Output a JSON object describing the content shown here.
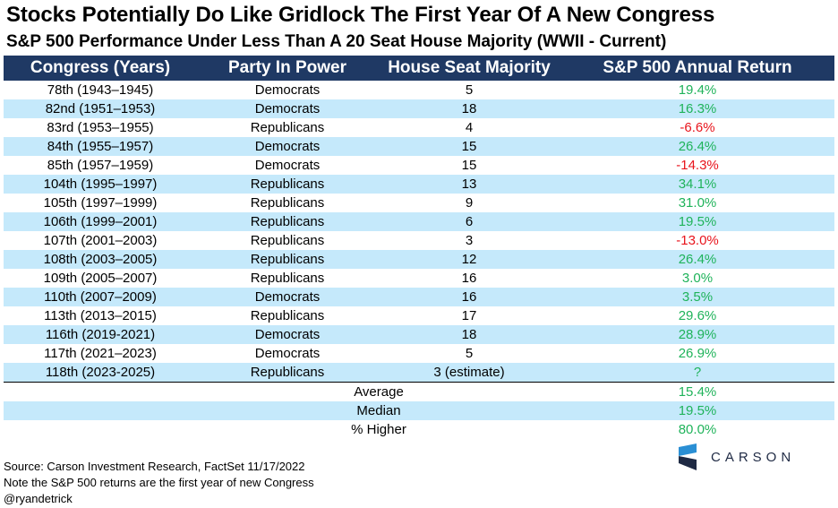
{
  "title": "Stocks Potentially Do Like Gridlock The First Year Of A New Congress",
  "subtitle": "S&P 500 Performance Under Less Than A 20 Seat House Majority (WWII - Current)",
  "headers": [
    "Congress (Years)",
    "Party In Power",
    "House Seat Majority",
    "S&P 500 Annual Return"
  ],
  "rows": [
    {
      "congress": "78th (1943–1945)",
      "party": "Democrats",
      "majority": "5",
      "ret": "19.4%"
    },
    {
      "congress": "82nd (1951–1953)",
      "party": "Democrats",
      "majority": "18",
      "ret": "16.3%"
    },
    {
      "congress": "83rd (1953–1955)",
      "party": "Republicans",
      "majority": "4",
      "ret": "-6.6%"
    },
    {
      "congress": "84th (1955–1957)",
      "party": "Democrats",
      "majority": "15",
      "ret": "26.4%"
    },
    {
      "congress": "85th (1957–1959)",
      "party": "Democrats",
      "majority": "15",
      "ret": "-14.3%"
    },
    {
      "congress": "104th (1995–1997)",
      "party": "Republicans",
      "majority": "13",
      "ret": "34.1%"
    },
    {
      "congress": "105th (1997–1999)",
      "party": "Republicans",
      "majority": "9",
      "ret": "31.0%"
    },
    {
      "congress": "106th (1999–2001)",
      "party": "Republicans",
      "majority": "6",
      "ret": "19.5%"
    },
    {
      "congress": "107th (2001–2003)",
      "party": "Republicans",
      "majority": "3",
      "ret": "-13.0%"
    },
    {
      "congress": "108th (2003–2005)",
      "party": "Republicans",
      "majority": "12",
      "ret": "26.4%"
    },
    {
      "congress": "109th (2005–2007)",
      "party": "Republicans",
      "majority": "16",
      "ret": "3.0%"
    },
    {
      "congress": "110th (2007–2009)",
      "party": "Democrats",
      "majority": "16",
      "ret": "3.5%"
    },
    {
      "congress": "113th (2013–2015)",
      "party": "Republicans",
      "majority": "17",
      "ret": "29.6%"
    },
    {
      "congress": "116th (2019-2021)",
      "party": "Democrats",
      "majority": "18",
      "ret": "28.9%"
    },
    {
      "congress": "117th (2021–2023)",
      "party": "Democrats",
      "majority": "5",
      "ret": "26.9%"
    },
    {
      "congress": "118th (2023-2025)",
      "party": "Republicans",
      "majority": "3 (estimate)",
      "ret": "?"
    }
  ],
  "summary": [
    {
      "label": "Average",
      "value": "15.4%"
    },
    {
      "label": "Median",
      "value": "19.5%"
    },
    {
      "label": "% Higher",
      "value": "80.0%"
    }
  ],
  "colors": {
    "positive": "#1fb35a",
    "negative": "#e8141c",
    "header_bg": "#1f3964",
    "band": "#c5e9fb"
  },
  "notes": [
    "Source: Carson Investment Research, FactSet  11/17/2022",
    "Note the S&P 500 returns are the first year of new Congress",
    "@ryandetrick"
  ],
  "logo": {
    "text": "CARSON",
    "icon": "carson-logo-icon"
  },
  "chart_data": {
    "type": "table",
    "title": "Stocks Potentially Do Like Gridlock The First Year Of A New Congress",
    "subtitle": "S&P 500 Performance Under Less Than A 20 Seat House Majority (WWII - Current)",
    "columns": [
      "Congress (Years)",
      "Party In Power",
      "House Seat Majority",
      "S&P 500 Annual Return"
    ],
    "values": [
      [
        "78th (1943–1945)",
        "Democrats",
        "5",
        "19.4%"
      ],
      [
        "82nd (1951–1953)",
        "Democrats",
        "18",
        "16.3%"
      ],
      [
        "83rd (1953–1955)",
        "Republicans",
        "4",
        "-6.6%"
      ],
      [
        "84th (1955–1957)",
        "Democrats",
        "15",
        "26.4%"
      ],
      [
        "85th (1957–1959)",
        "Democrats",
        "15",
        "-14.3%"
      ],
      [
        "104th (1995–1997)",
        "Republicans",
        "13",
        "34.1%"
      ],
      [
        "105th (1997–1999)",
        "Republicans",
        "9",
        "31.0%"
      ],
      [
        "106th (1999–2001)",
        "Republicans",
        "6",
        "19.5%"
      ],
      [
        "107th (2001–2003)",
        "Republicans",
        "3",
        "-13.0%"
      ],
      [
        "108th (2003–2005)",
        "Republicans",
        "12",
        "26.4%"
      ],
      [
        "109th (2005–2007)",
        "Republicans",
        "16",
        "3.0%"
      ],
      [
        "110th (2007–2009)",
        "Democrats",
        "16",
        "3.5%"
      ],
      [
        "113th (2013–2015)",
        "Republicans",
        "17",
        "29.6%"
      ],
      [
        "116th (2019-2021)",
        "Democrats",
        "18",
        "28.9%"
      ],
      [
        "117th (2021–2023)",
        "Democrats",
        "5",
        "26.9%"
      ],
      [
        "118th (2023-2025)",
        "Republicans",
        "3 (estimate)",
        "?"
      ]
    ],
    "summary": {
      "Average": "15.4%",
      "Median": "19.5%",
      "% Higher": "80.0%"
    }
  }
}
